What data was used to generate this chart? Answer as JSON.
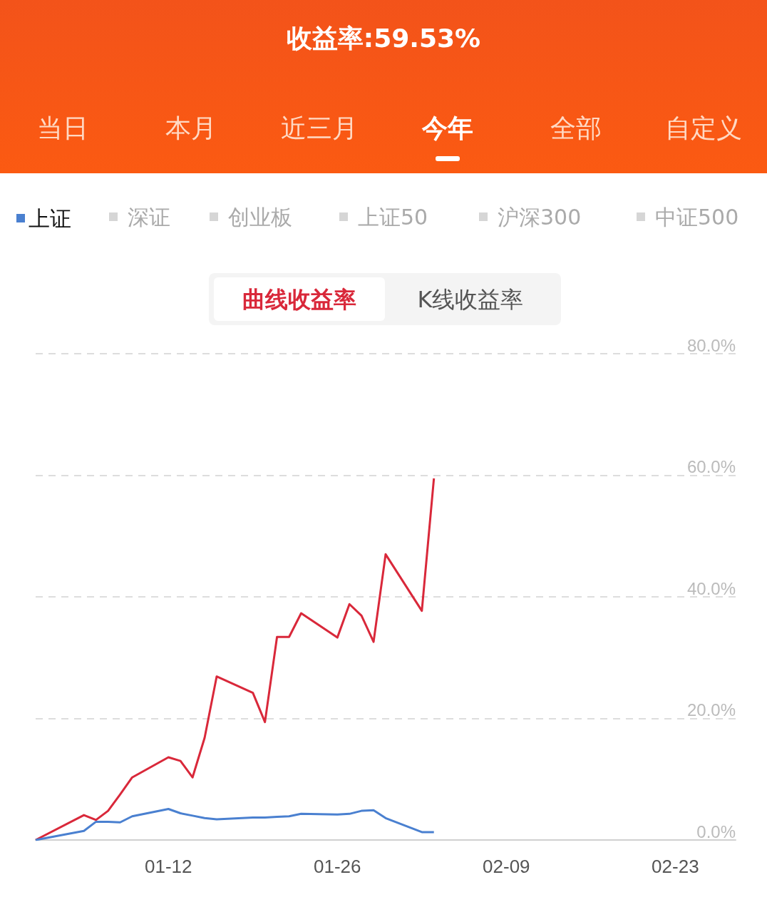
{
  "chart_data": {
    "type": "line",
    "title": "收益率:59.53%",
    "x": [
      "--01-01",
      "--01-05",
      "--01-06",
      "--01-07",
      "--01-08",
      "--01-09",
      "--01-12",
      "--01-13",
      "--01-14",
      "--01-15",
      "--01-16",
      "--01-19",
      "--01-20",
      "--01-21",
      "--01-22",
      "--01-23",
      "--01-26",
      "--01-27",
      "--01-28",
      "--01-29",
      "--01-30",
      "--02-02",
      "--02-03"
    ],
    "series": [
      {
        "color": "#d9283a",
        "values": [
          0,
          4.1,
          3.3,
          4.8,
          7.5,
          10.3,
          13.6,
          13.0,
          10.3,
          16.8,
          26.9,
          24.2,
          19.4,
          33.4,
          33.4,
          37.3,
          33.3,
          38.8,
          36.9,
          32.6,
          47.0,
          37.7,
          59.5
        ]
      },
      {
        "name": "上证",
        "color": "#4a80d0",
        "values": [
          0,
          1.5,
          3.0,
          3.0,
          2.9,
          3.9,
          5.1,
          4.4,
          4.0,
          3.6,
          3.4,
          3.7,
          3.7,
          3.8,
          3.9,
          4.3,
          4.2,
          4.3,
          4.8,
          4.9,
          3.6,
          1.3,
          1.3
        ]
      }
    ],
    "xlim": [
      "--01-01",
      "--02-28"
    ],
    "xticks": [
      {
        "value": "--01-12",
        "label": "01-12"
      },
      {
        "value": "--01-26",
        "label": "01-26"
      },
      {
        "value": "--02-09",
        "label": "02-09"
      },
      {
        "value": "--02-23",
        "label": "02-23"
      }
    ],
    "ylim": [
      0,
      80
    ],
    "yticks": [
      {
        "value": 0,
        "label": "0.0%"
      },
      {
        "value": 20,
        "label": "20.0%"
      },
      {
        "value": 40,
        "label": "40.0%"
      },
      {
        "value": 60,
        "label": "60.0%"
      },
      {
        "value": 80,
        "label": "80.0%"
      }
    ],
    "grid": "y",
    "legend": "top left",
    "marker": "none",
    "annotations": [
      "当日",
      "本月",
      "近三月",
      "今年",
      "全部",
      "自定义",
      "深证",
      "创业板",
      "上证50",
      "沪深300",
      "中证500",
      "曲线收益率",
      "K线收益率"
    ]
  }
}
